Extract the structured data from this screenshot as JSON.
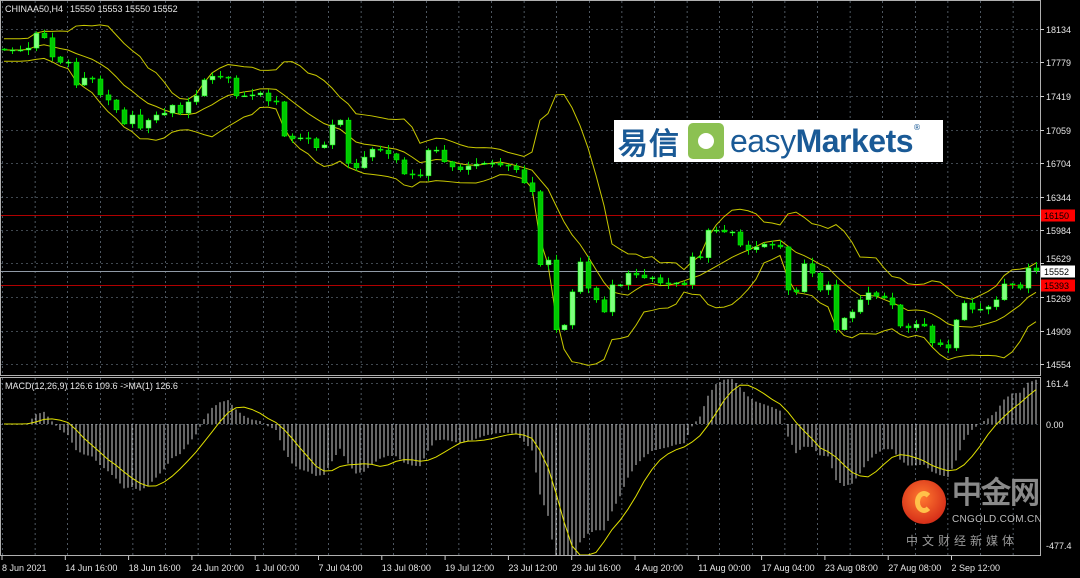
{
  "header": {
    "symbol": "CHINAA50,H4",
    "ohlc": "15550 15553 15550 15552"
  },
  "macd_label": "MACD(12,26,9) 126.6 109.6  ->MA(1) 126.6",
  "colors": {
    "background": "#000000",
    "bull": "#00ff00",
    "bands": "#c8c800",
    "level_line": "#b00000",
    "grid": "#8090a0",
    "macd_hist": "#ffffff",
    "macd_signal": "#e0e000"
  },
  "chart_data": {
    "type": "candlestick",
    "symbol": "CHINAA50",
    "timeframe": "H4",
    "indicators": [
      "Bollinger Bands",
      "MACD(12,26,9)"
    ],
    "y_ticks": [
      18134,
      17779,
      17419,
      17059,
      16704,
      16344,
      15984,
      15629,
      15269,
      14909,
      14554
    ],
    "ylim": [
      14400,
      18300
    ],
    "x_ticks": [
      "8 Jun 2021",
      "14 Jun 16:00",
      "18 Jun 16:00",
      "24 Jun 20:00",
      "1 Jul 00:00",
      "7 Jul 04:00",
      "13 Jul 08:00",
      "19 Jul 12:00",
      "23 Jul 12:00",
      "29 Jul 16:00",
      "4 Aug 20:00",
      "11 Aug 00:00",
      "17 Aug 04:00",
      "23 Aug 08:00",
      "27 Aug 08:00",
      "2 Sep 12:00"
    ],
    "closes": [
      17910,
      17910,
      17910,
      17930,
      18090,
      18040,
      17835,
      17780,
      17780,
      17535,
      17610,
      17600,
      17430,
      17375,
      17270,
      17120,
      17215,
      17075,
      17160,
      17215,
      17235,
      17320,
      17235,
      17355,
      17420,
      17590,
      17630,
      17620,
      17610,
      17420,
      17420,
      17430,
      17450,
      17365,
      17355,
      16990,
      16960,
      16970,
      16960,
      16865,
      16895,
      17110,
      17160,
      16700,
      16650,
      16765,
      16850,
      16840,
      16800,
      16735,
      16585,
      16575,
      16565,
      16840,
      16840,
      16715,
      16660,
      16630,
      16670,
      16690,
      16700,
      16700,
      16680,
      16670,
      16630,
      16490,
      16395,
      15615,
      15665,
      14920,
      14970,
      15325,
      15645,
      15365,
      15240,
      15110,
      15400,
      15400,
      15525,
      15505,
      15475,
      15475,
      15420,
      15410,
      15420,
      15400,
      15700,
      15690,
      15985,
      15985,
      15965,
      15965,
      15825,
      15775,
      15805,
      15835,
      15825,
      15805,
      15345,
      15325,
      15625,
      15525,
      15345,
      15400,
      14920,
      15045,
      15110,
      15240,
      15315,
      15280,
      15260,
      15185,
      14960,
      14940,
      14980,
      14960,
      14780,
      14760,
      14725,
      15025,
      15205,
      15140,
      15140,
      15165,
      15240,
      15410,
      15400,
      15365,
      15580,
      15552
    ],
    "levels": [
      {
        "label": "16150",
        "value": 16150,
        "color": "#ff0000"
      },
      {
        "label": "15393",
        "value": 15393,
        "color": "#ff0000"
      }
    ],
    "current_price": {
      "label": "15552",
      "value": 15552
    },
    "macd": {
      "y_ticks": [
        "161.4",
        "0.00",
        "-477.4"
      ],
      "ylim": [
        -477.4,
        161.4
      ],
      "main": 126.6,
      "signal": 109.6
    }
  },
  "logos": {
    "easymarkets": {
      "cn": "易信",
      "en_light": "easy",
      "en_bold": "Markets",
      "reg": "®"
    },
    "cngold": {
      "big": "中金网",
      "url": "CNGOLD.COM.CN",
      "sub": "中文财经新媒体"
    }
  }
}
